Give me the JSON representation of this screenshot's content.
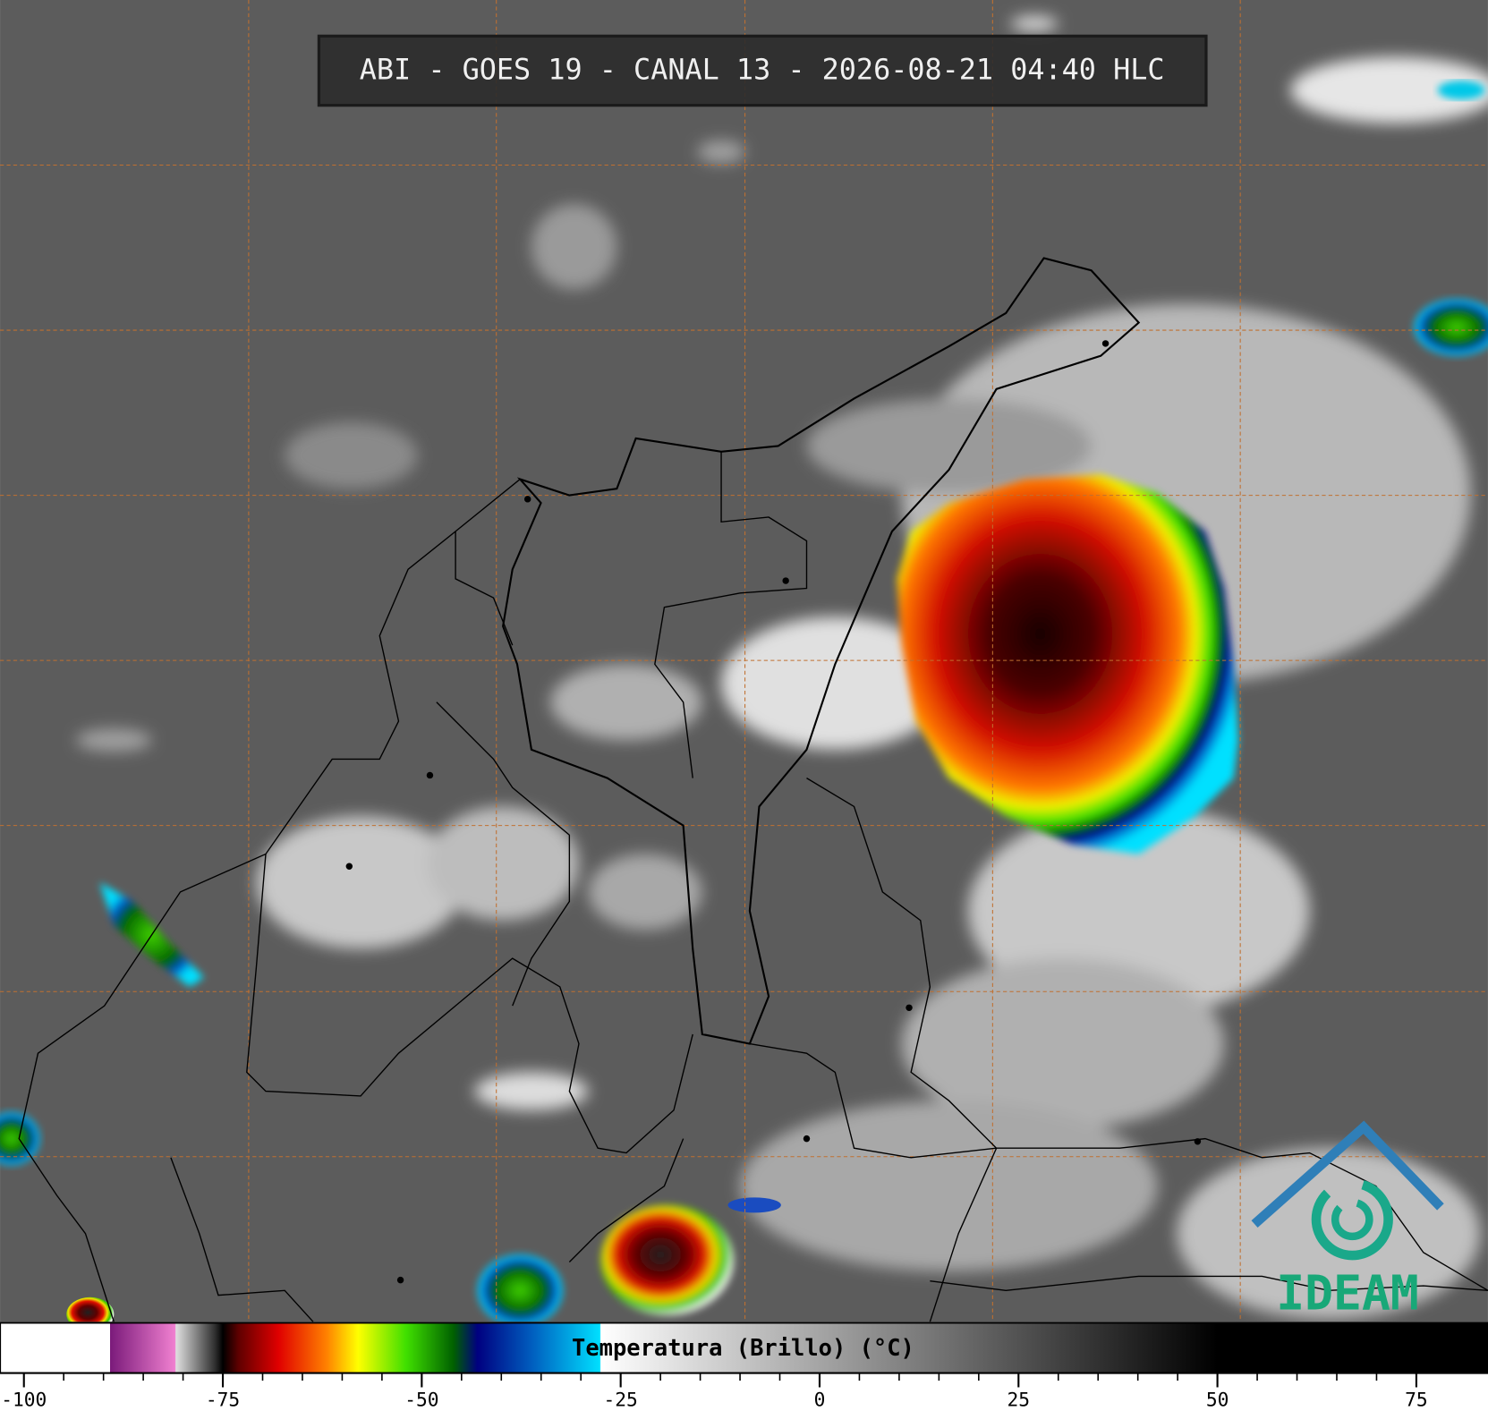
{
  "header": {
    "title": "ABI - GOES 19 - CANAL 13 - 2026-08-21 04:40 HLC"
  },
  "colorbar": {
    "label": "Temperatura (Brillo) (°C)",
    "xlim": [
      -103,
      84
    ],
    "ticks": [
      -100,
      -75,
      -50,
      -25,
      0,
      25,
      50,
      75
    ],
    "stops": [
      {
        "value": -103,
        "color": "#ffffff"
      },
      {
        "value": -89.2,
        "color": "#ffffff"
      },
      {
        "value": -89.2,
        "color": "#7a1a7a"
      },
      {
        "value": -81,
        "color": "#f080d0"
      },
      {
        "value": -80.9,
        "color": "#e0e0e0"
      },
      {
        "value": -76,
        "color": "#303030"
      },
      {
        "value": -75,
        "color": "#000000"
      },
      {
        "value": -73,
        "color": "#600000"
      },
      {
        "value": -68,
        "color": "#e00000"
      },
      {
        "value": -62,
        "color": "#ff8000"
      },
      {
        "value": -58,
        "color": "#ffff00"
      },
      {
        "value": -52,
        "color": "#40e000"
      },
      {
        "value": -46,
        "color": "#006000"
      },
      {
        "value": -43,
        "color": "#000080"
      },
      {
        "value": -36,
        "color": "#0060c0"
      },
      {
        "value": -27.6,
        "color": "#00e0ff"
      },
      {
        "value": -27.5,
        "color": "#ffffff"
      },
      {
        "value": 50,
        "color": "#000000"
      },
      {
        "value": 84,
        "color": "#000000"
      }
    ]
  },
  "logo": {
    "text": "IDEAM"
  }
}
